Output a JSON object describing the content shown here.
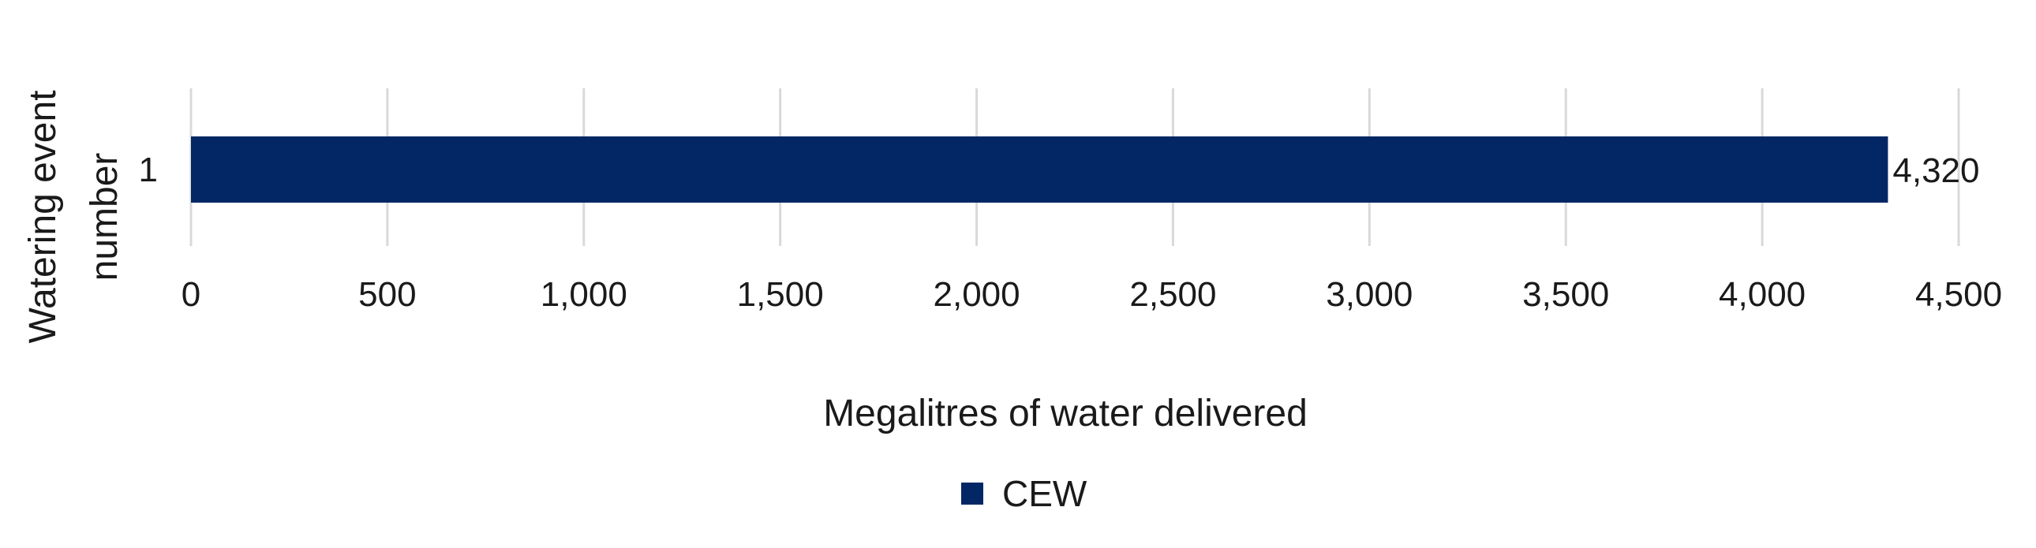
{
  "chart_data": {
    "type": "bar",
    "orientation": "horizontal",
    "categories": [
      "1"
    ],
    "series": [
      {
        "name": "CEW",
        "values": [
          4320
        ],
        "color": "#032764"
      }
    ],
    "data_labels": [
      "4,320"
    ],
    "xlabel": "Megalitres of water delivered",
    "ylabel": "Watering event number",
    "ylabel_lines": [
      "Watering event",
      "number"
    ],
    "xlim": [
      0,
      4500
    ],
    "x_ticks": [
      0,
      500,
      1000,
      1500,
      2000,
      2500,
      3000,
      3500,
      4000,
      4500
    ],
    "x_tick_labels": [
      "0",
      "500",
      "1,000",
      "1,500",
      "2,000",
      "2,500",
      "3,000",
      "3,500",
      "4,000",
      "4,500"
    ],
    "grid": true,
    "legend_position": "bottom"
  }
}
